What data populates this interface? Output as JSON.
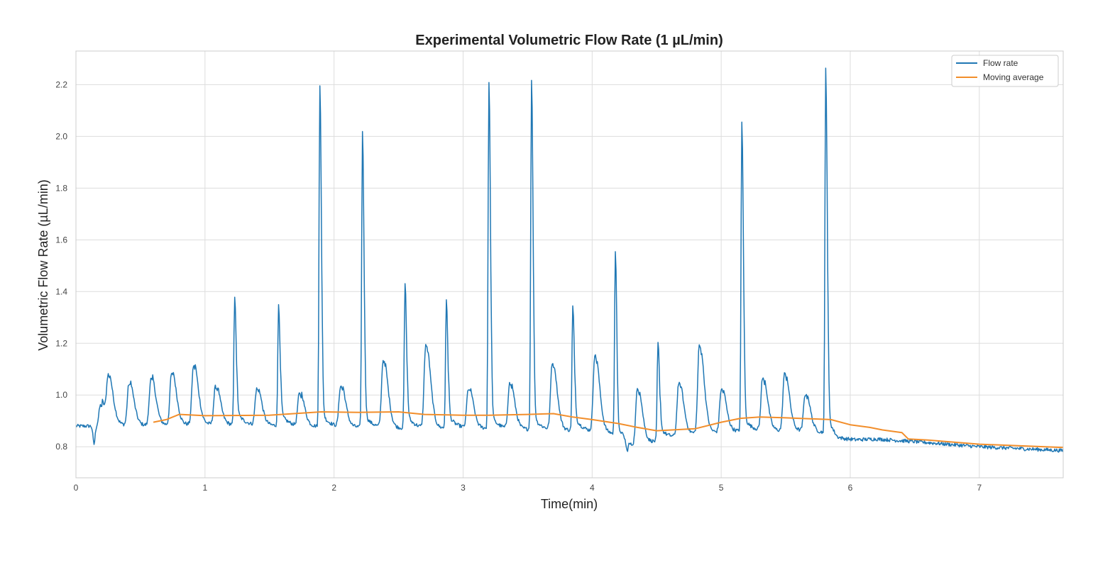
{
  "chart_data": {
    "type": "line",
    "title": "Experimental Volumetric Flow Rate (1 µL/min)",
    "xlabel": "Time(min)",
    "ylabel": "Volumetric Flow Rate (µL/min)",
    "xlim": [
      0,
      7.65
    ],
    "ylim": [
      0.68,
      2.33
    ],
    "x_ticks": [
      0,
      1,
      2,
      3,
      4,
      5,
      6,
      7
    ],
    "x_tick_labels": [
      "0",
      "1",
      "2",
      "3",
      "4",
      "5",
      "6",
      "7"
    ],
    "y_ticks": [
      0.8,
      1.0,
      1.2,
      1.4,
      1.6,
      1.8,
      2.0,
      2.2
    ],
    "y_tick_labels": [
      "0.8",
      "1.0",
      "1.2",
      "1.4",
      "1.6",
      "1.8",
      "2.0",
      "2.2"
    ],
    "grid": true,
    "legend_position": "top-right",
    "colors": {
      "flow_rate": "#1f77b4",
      "moving_average": "#f28e2b",
      "grid": "#dddddd",
      "frame": "#cccccc"
    },
    "series": [
      {
        "name": "Flow rate",
        "baseline": [
          [
            0,
            0.88
          ],
          [
            0.5,
            0.88
          ],
          [
            1.0,
            0.885
          ],
          [
            1.5,
            0.88
          ],
          [
            2.0,
            0.875
          ],
          [
            2.5,
            0.87
          ],
          [
            3.0,
            0.87
          ],
          [
            3.5,
            0.865
          ],
          [
            3.9,
            0.86
          ],
          [
            4.15,
            0.85
          ],
          [
            4.3,
            0.8
          ],
          [
            4.5,
            0.82
          ],
          [
            4.8,
            0.85
          ],
          [
            5.2,
            0.86
          ],
          [
            5.6,
            0.86
          ],
          [
            5.85,
            0.85
          ],
          [
            5.9,
            0.825
          ],
          [
            6.2,
            0.83
          ],
          [
            6.5,
            0.82
          ],
          [
            7.0,
            0.8
          ],
          [
            7.65,
            0.785
          ]
        ],
        "peaks": [
          [
            0.19,
            0.96
          ],
          [
            0.25,
            1.05
          ],
          [
            0.41,
            1.04
          ],
          [
            0.58,
            1.06
          ],
          [
            0.74,
            1.08
          ],
          [
            0.91,
            1.11
          ],
          [
            1.08,
            1.03
          ],
          [
            1.23,
            1.38
          ],
          [
            1.4,
            1.02
          ],
          [
            1.57,
            1.35
          ],
          [
            1.73,
            1.0
          ],
          [
            1.89,
            2.2
          ],
          [
            2.05,
            1.03
          ],
          [
            2.22,
            2.02
          ],
          [
            2.38,
            1.13
          ],
          [
            2.55,
            1.43
          ],
          [
            2.71,
            1.19
          ],
          [
            2.87,
            1.36
          ],
          [
            3.04,
            1.02
          ],
          [
            3.2,
            2.21
          ],
          [
            3.36,
            1.04
          ],
          [
            3.53,
            2.22
          ],
          [
            3.69,
            1.12
          ],
          [
            3.85,
            1.34
          ],
          [
            4.02,
            1.15
          ],
          [
            4.18,
            1.56
          ],
          [
            4.35,
            1.02
          ],
          [
            4.51,
            1.2
          ],
          [
            4.67,
            1.04
          ],
          [
            4.83,
            1.19
          ],
          [
            5.0,
            1.02
          ],
          [
            5.16,
            2.05
          ],
          [
            5.32,
            1.06
          ],
          [
            5.49,
            1.08
          ],
          [
            5.65,
            1.0
          ],
          [
            5.81,
            2.26
          ]
        ],
        "dips": [
          [
            0.14,
            0.81
          ],
          [
            4.2,
            0.76
          ],
          [
            4.27,
            0.77
          ]
        ]
      },
      {
        "name": "Moving average",
        "points": [
          [
            0.6,
            0.895
          ],
          [
            0.7,
            0.905
          ],
          [
            0.8,
            0.925
          ],
          [
            1.0,
            0.92
          ],
          [
            1.5,
            0.922
          ],
          [
            1.9,
            0.935
          ],
          [
            2.2,
            0.933
          ],
          [
            2.5,
            0.935
          ],
          [
            2.7,
            0.925
          ],
          [
            3.0,
            0.922
          ],
          [
            3.2,
            0.922
          ],
          [
            3.5,
            0.925
          ],
          [
            3.7,
            0.928
          ],
          [
            3.85,
            0.915
          ],
          [
            4.0,
            0.905
          ],
          [
            4.2,
            0.89
          ],
          [
            4.35,
            0.875
          ],
          [
            4.5,
            0.862
          ],
          [
            4.8,
            0.87
          ],
          [
            5.0,
            0.895
          ],
          [
            5.15,
            0.91
          ],
          [
            5.3,
            0.915
          ],
          [
            5.5,
            0.912
          ],
          [
            5.85,
            0.905
          ],
          [
            6.0,
            0.885
          ],
          [
            6.15,
            0.875
          ],
          [
            6.25,
            0.865
          ],
          [
            6.4,
            0.855
          ],
          [
            6.45,
            0.83
          ],
          [
            6.6,
            0.826
          ],
          [
            7.0,
            0.81
          ],
          [
            7.65,
            0.797
          ]
        ]
      }
    ]
  }
}
